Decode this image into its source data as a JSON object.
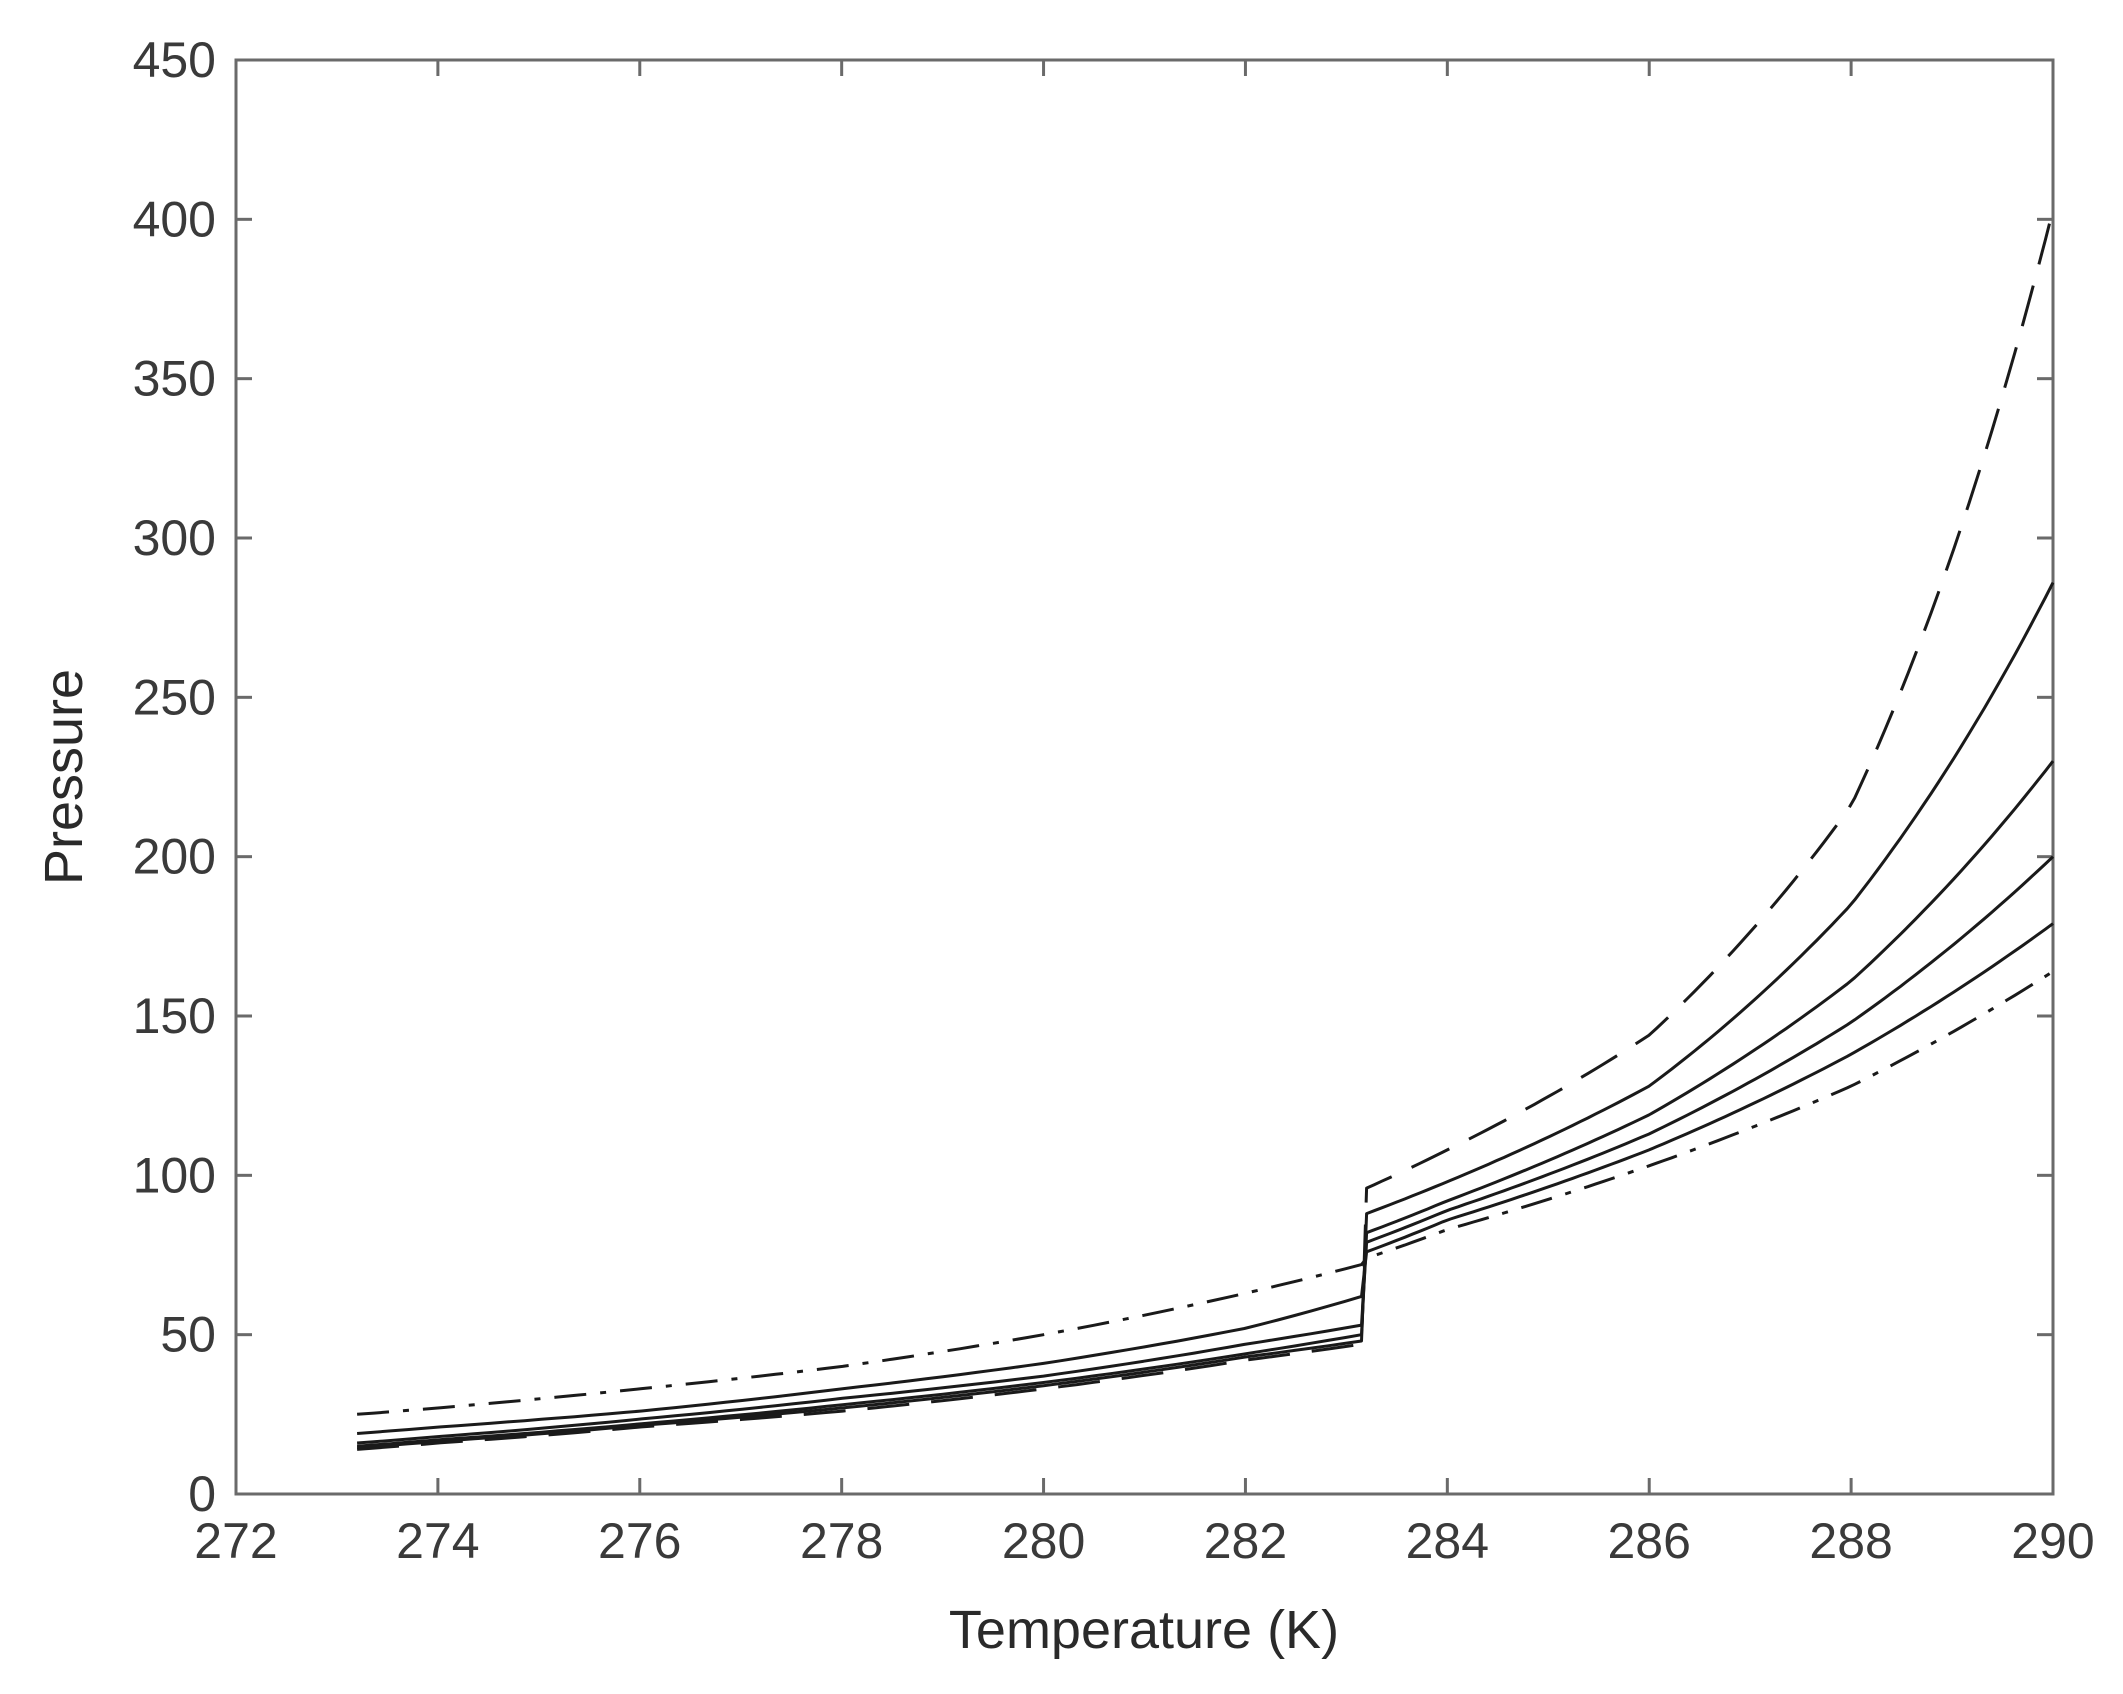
{
  "chart_data": {
    "type": "line",
    "title": "",
    "xlabel": "Temperature (K)",
    "ylabel": "Pressure",
    "xlim": [
      272,
      290
    ],
    "ylim": [
      0,
      450
    ],
    "xticks": [
      "272",
      "274",
      "276",
      "278",
      "280",
      "282",
      "284",
      "286",
      "288",
      "290"
    ],
    "yticks": [
      "0",
      "50",
      "100",
      "150",
      "200",
      "250",
      "300",
      "350",
      "400",
      "450"
    ],
    "grid": false,
    "legend": "none",
    "x": [
      273.2,
      274,
      276,
      278,
      280,
      282,
      283.15,
      283.2,
      284,
      286,
      288,
      290
    ],
    "series": [
      {
        "style": "dashed",
        "values": [
          14,
          16,
          21,
          26,
          33,
          42,
          47,
          96,
          108,
          144,
          216,
          403
        ]
      },
      {
        "style": "solid",
        "values": [
          14.5,
          16.5,
          21.5,
          27,
          34,
          43,
          48,
          88,
          98,
          128,
          185,
          286
        ]
      },
      {
        "style": "solid",
        "values": [
          15,
          17,
          22,
          28,
          35,
          44,
          50,
          82,
          92,
          119,
          161,
          230
        ]
      },
      {
        "style": "solid",
        "values": [
          16,
          18,
          23.5,
          30,
          37,
          47,
          53,
          79,
          89,
          113,
          148,
          200
        ]
      },
      {
        "style": "solid",
        "values": [
          19,
          21,
          26,
          33,
          41,
          52,
          62,
          76,
          86,
          108,
          138,
          179
        ]
      },
      {
        "style": "dashdot",
        "values": [
          25,
          27,
          33,
          40,
          50,
          63,
          72,
          74,
          83,
          103,
          128,
          164
        ]
      }
    ]
  }
}
